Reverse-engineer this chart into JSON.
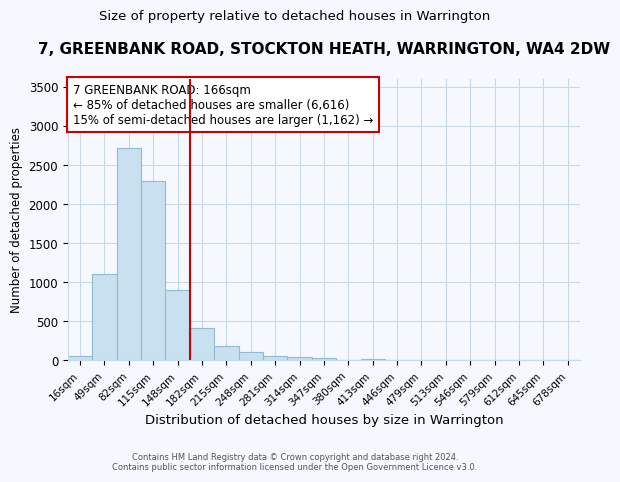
{
  "title": "7, GREENBANK ROAD, STOCKTON HEATH, WARRINGTON, WA4 2DW",
  "subtitle": "Size of property relative to detached houses in Warrington",
  "xlabel": "Distribution of detached houses by size in Warrington",
  "ylabel": "Number of detached properties",
  "categories": [
    "16sqm",
    "49sqm",
    "82sqm",
    "115sqm",
    "148sqm",
    "182sqm",
    "215sqm",
    "248sqm",
    "281sqm",
    "314sqm",
    "347sqm",
    "380sqm",
    "413sqm",
    "446sqm",
    "479sqm",
    "513sqm",
    "546sqm",
    "579sqm",
    "612sqm",
    "645sqm",
    "678sqm"
  ],
  "values": [
    60,
    1100,
    2720,
    2290,
    900,
    415,
    185,
    110,
    60,
    45,
    30,
    10,
    25,
    0,
    0,
    0,
    0,
    0,
    0,
    0,
    0
  ],
  "bar_color": "#c9e0f0",
  "bar_edge_color": "#8fbcd4",
  "property_label": "7 GREENBANK ROAD: 166sqm",
  "annotation_line1": "← 85% of detached houses are smaller (6,616)",
  "annotation_line2": "15% of semi-detached houses are larger (1,162) →",
  "vline_color": "#cc0000",
  "vline_x": 4.5,
  "annotation_box_edge_color": "#cc0000",
  "ylim": [
    0,
    3600
  ],
  "yticks": [
    0,
    500,
    1000,
    1500,
    2000,
    2500,
    3000,
    3500
  ],
  "footer1": "Contains HM Land Registry data © Crown copyright and database right 2024.",
  "footer2": "Contains public sector information licensed under the Open Government Licence v3.0.",
  "bg_color": "#f5f8ff",
  "plot_bg_color": "#f5f8ff",
  "grid_color": "#c8d8e8",
  "title_fontsize": 11,
  "subtitle_fontsize": 9.5,
  "xlabel_fontsize": 9.5
}
